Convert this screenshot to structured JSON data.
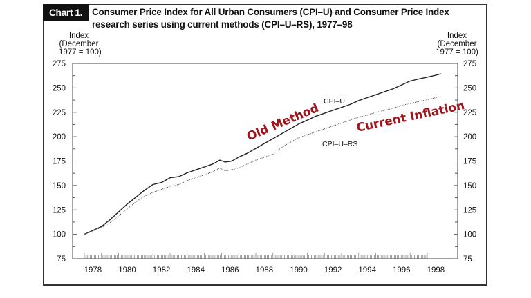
{
  "header": {
    "tag": "Chart 1.",
    "title_line1": "Consumer Price Index for All Urban Consumers (CPI–U) and Consumer Price Index",
    "title_line2": "research series using current methods (CPI–U–RS), 1977–98"
  },
  "chart_data": {
    "type": "line",
    "title": "Consumer Price Index for All Urban Consumers (CPI–U) and Consumer Price Index research series using current methods (CPI–U–RS), 1977–98",
    "ylabel_left": [
      "Index",
      "(December",
      "1977 = 100)"
    ],
    "ylabel_right": [
      "Index",
      "(December",
      "1977 = 100)"
    ],
    "ylim": [
      75,
      275
    ],
    "yticks": [
      75,
      100,
      125,
      150,
      175,
      200,
      225,
      250,
      275
    ],
    "xlim": [
      1977.3,
      1999.8
    ],
    "xticks": [
      "1978",
      "1980",
      "1982",
      "1984",
      "1986",
      "1988",
      "1990",
      "1992",
      "1994",
      "1996",
      "1998"
    ],
    "grid": false,
    "x": [
      1978.0,
      1978.5,
      1979.0,
      1979.5,
      1980.0,
      1980.5,
      1981.0,
      1981.5,
      1982.0,
      1982.5,
      1983.0,
      1983.5,
      1984.0,
      1984.5,
      1985.0,
      1985.5,
      1985.9,
      1986.2,
      1986.6,
      1987.0,
      1987.5,
      1988.0,
      1988.5,
      1989.0,
      1989.5,
      1990.0,
      1990.5,
      1991.0,
      1991.5,
      1992.0,
      1992.5,
      1993.0,
      1993.5,
      1994.0,
      1994.5,
      1995.0,
      1995.5,
      1996.0,
      1996.5,
      1997.0,
      1997.5,
      1998.0,
      1998.5,
      1998.8
    ],
    "series": [
      {
        "name": "CPI–U",
        "style": "solid",
        "color": "#222222",
        "values": [
          100,
          104,
          108,
          115,
          123,
          131,
          138,
          145,
          151,
          153,
          158,
          159,
          163,
          166,
          169,
          172,
          176,
          174,
          175,
          179,
          183,
          188,
          193,
          198,
          203,
          208,
          213,
          217,
          221,
          224,
          227,
          230,
          233,
          237,
          240,
          243,
          246,
          249,
          253,
          257,
          259,
          261,
          263,
          264.5
        ]
      },
      {
        "name": "CPI–U–RS",
        "style": "dotted",
        "color": "#555555",
        "values": [
          100,
          103.5,
          107,
          112,
          119,
          126,
          133,
          139,
          143,
          146,
          149,
          151,
          155,
          158,
          161,
          164,
          168,
          165,
          166,
          168,
          172,
          176,
          179,
          182,
          189,
          194,
          199,
          202,
          205,
          208,
          211,
          214,
          217,
          220,
          222,
          225,
          227,
          229,
          232,
          234,
          236,
          238,
          240,
          241
        ]
      }
    ],
    "annotations": [
      {
        "text": "Old Method",
        "color": "#a0141c"
      },
      {
        "text": "Current Inflation",
        "color": "#a0141c"
      }
    ]
  }
}
